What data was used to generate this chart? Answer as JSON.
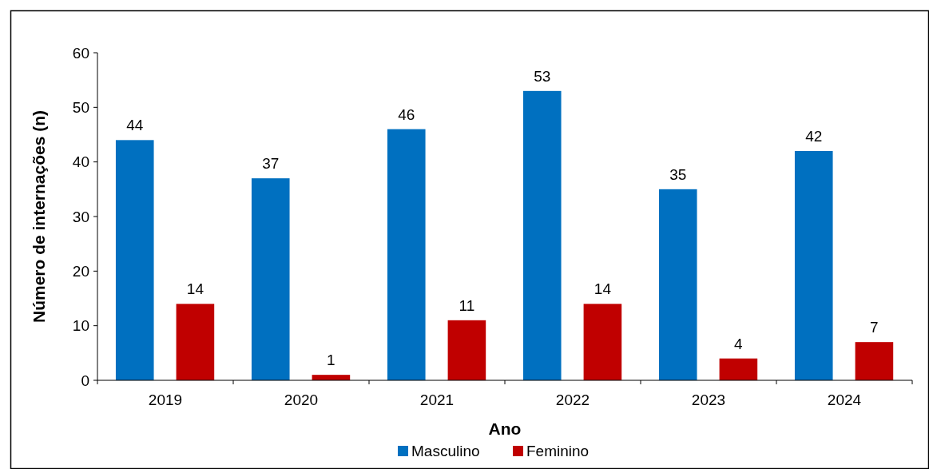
{
  "chart_data": {
    "type": "bar",
    "xlabel": "Ano",
    "ylabel": "Número de internações (n)",
    "categories": [
      "2019",
      "2020",
      "2021",
      "2022",
      "2023",
      "2024"
    ],
    "series": [
      {
        "name": "Masculino",
        "color": "#0070c0",
        "values": [
          44,
          37,
          46,
          53,
          35,
          42
        ]
      },
      {
        "name": "Feminino",
        "color": "#c00000",
        "values": [
          14,
          1,
          11,
          14,
          4,
          7
        ]
      }
    ],
    "ylim": [
      0,
      60
    ],
    "yticks": [
      0,
      10,
      20,
      30,
      40,
      50,
      60
    ],
    "data_labels": true,
    "legend": "bottom",
    "grid": false
  }
}
